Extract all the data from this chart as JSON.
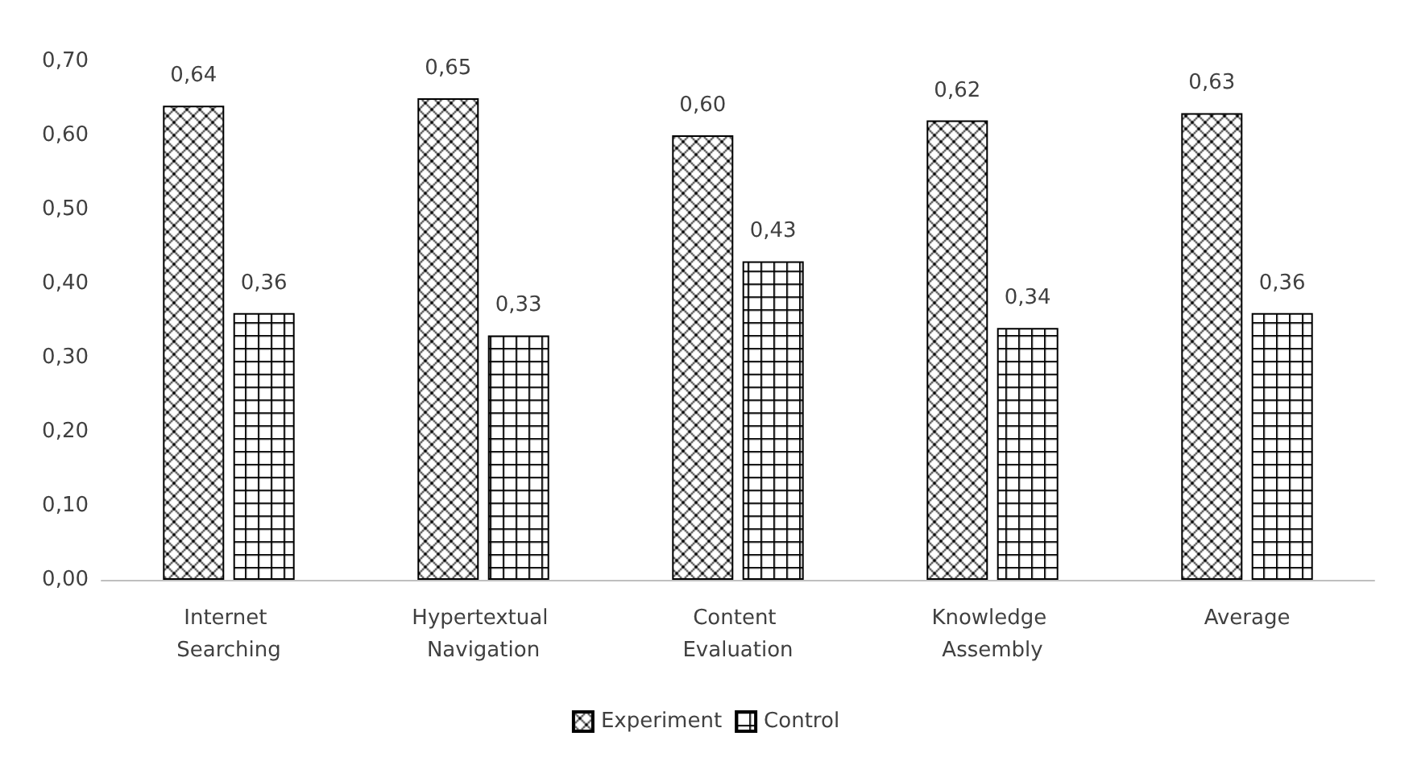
{
  "chart_data": {
    "type": "bar",
    "categories": [
      "Internet Searching",
      "Hypertextual Navigation",
      "Content Evaluation",
      "Knowledge Assembly",
      "Average"
    ],
    "series": [
      {
        "name": "Experiment",
        "color": "#000000",
        "values": [
          0.64,
          0.65,
          0.6,
          0.62,
          0.63
        ],
        "value_labels": [
          "0,64",
          "0,65",
          "0,60",
          "0,62",
          "0,63"
        ]
      },
      {
        "name": "Control",
        "color": "#000000",
        "values": [
          0.36,
          0.33,
          0.43,
          0.34,
          0.36
        ],
        "value_labels": [
          "0,36",
          "0,33",
          "0,43",
          "0,34",
          "0,36"
        ]
      }
    ],
    "ylim": [
      0,
      0.7
    ],
    "yticks": [
      {
        "value": 0,
        "label": "0,00"
      },
      {
        "value": 0.1,
        "label": "0,10"
      },
      {
        "value": 0.2,
        "label": "0,20"
      },
      {
        "value": 0.3,
        "label": "0,30"
      },
      {
        "value": 0.4,
        "label": "0,40"
      },
      {
        "value": 0.5,
        "label": "0,50"
      },
      {
        "value": 0.6,
        "label": "0,60"
      },
      {
        "value": 0.7,
        "label": "0,70"
      }
    ],
    "grid": false,
    "legend": "bottom"
  }
}
